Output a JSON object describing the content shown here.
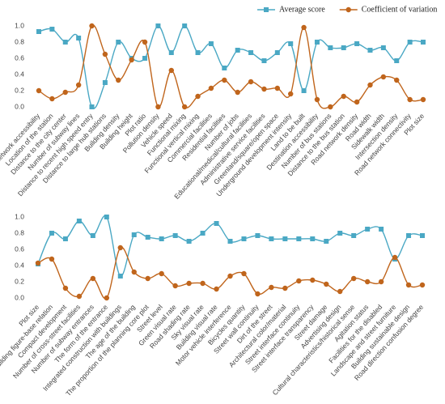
{
  "chart_data": [
    {
      "type": "line",
      "legend": "top-right",
      "categories": [
        "Metro network accessibility",
        "Location of the station",
        "Distance to the city center",
        "Number of subway lines",
        "Distance to recent high speed entry",
        "Distance to large hub stations",
        "Building density",
        "Building height",
        "Plot ratio",
        "Pollution density",
        "Vehicle speed",
        "Functional mixing",
        "Functional vertical mixing",
        "Commercial facilities",
        "Residential facilities",
        "Number of jobs",
        "Educational/medical/cultural facilities",
        "Administrative service facilities",
        "Greenland/square/open space",
        "Underground development intensity",
        "Land to be built",
        "Destination accessibility",
        "Number of bus stations",
        "Distance to the bus station",
        "Road network density",
        "Road width",
        "Sidewalk width",
        "Intersection density",
        "Road network connectivity",
        "Plot size"
      ],
      "series": [
        {
          "name": "Average score",
          "color": "#4aa8c4",
          "marker": "square",
          "values": [
            0.93,
            0.96,
            0.8,
            0.85,
            0.0,
            0.3,
            0.8,
            0.6,
            0.6,
            1.0,
            0.67,
            1.0,
            0.67,
            0.78,
            0.48,
            0.7,
            0.67,
            0.57,
            0.67,
            0.78,
            0.2,
            0.8,
            0.73,
            0.73,
            0.78,
            0.7,
            0.73,
            0.57,
            0.8,
            0.8
          ]
        },
        {
          "name": "Coefficient of variation",
          "color": "#c0651c",
          "marker": "circle",
          "values": [
            0.2,
            0.1,
            0.18,
            0.27,
            1.0,
            0.65,
            0.33,
            0.58,
            0.8,
            0.0,
            0.45,
            0.0,
            0.13,
            0.23,
            0.33,
            0.18,
            0.31,
            0.22,
            0.23,
            0.16,
            0.98,
            0.09,
            0.0,
            0.13,
            0.06,
            0.27,
            0.37,
            0.33,
            0.09,
            0.09
          ]
        }
      ],
      "ylim": [
        0,
        1
      ],
      "yticks": [
        {
          "value": 0,
          "label": "0.0"
        },
        0.2,
        0.4,
        0.6,
        0.8,
        {
          "value": 1,
          "label": "1.0"
        }
      ]
    },
    {
      "type": "line",
      "categories": [
        "Plot size",
        "Building figure-base relation",
        "Compact development",
        "Number of cross-street facilities",
        "Number of subway entrances",
        "The form of the entrance",
        "Integrated construction with buildings",
        "The age of the building",
        "The proportion of the planning core plot",
        "Street level",
        "Green visual rate",
        "Road shading rate",
        "Sky visual rate",
        "Building visual rate",
        "Motor vehicle interference",
        "Bicycles quantity",
        "Street wall continuity",
        "Dirt of the street",
        "Architectural color/material",
        "Street interface continuity",
        "Street interface transparency",
        "Street damage",
        "Advertising design",
        "Cultural characteristics/historical sense",
        "Agitation status",
        "Facilities for the disabled",
        "Landscape and street furniture",
        "Building sustainable design",
        "Road direction confusion degree"
      ],
      "series": [
        {
          "color": "#4aa8c4",
          "marker": "square",
          "values": [
            0.42,
            0.8,
            0.73,
            0.95,
            0.77,
            1.0,
            0.27,
            0.78,
            0.75,
            0.73,
            0.77,
            0.7,
            0.8,
            0.92,
            0.7,
            0.73,
            0.77,
            0.73,
            0.73,
            0.73,
            0.73,
            0.7,
            0.8,
            0.77,
            0.85,
            0.85,
            0.48,
            0.77,
            0.77
          ]
        },
        {
          "color": "#c0651c",
          "marker": "circle",
          "values": [
            0.43,
            0.48,
            0.12,
            0.02,
            0.24,
            0.0,
            0.62,
            0.32,
            0.24,
            0.3,
            0.15,
            0.18,
            0.18,
            0.11,
            0.27,
            0.3,
            0.05,
            0.13,
            0.12,
            0.21,
            0.22,
            0.17,
            0.08,
            0.24,
            0.2,
            0.2,
            0.5,
            0.16,
            0.16
          ]
        }
      ],
      "ylim": [
        0,
        1
      ],
      "yticks": [
        {
          "value": 0,
          "label": "0.0"
        },
        0.2,
        0.4,
        0.6,
        0.8,
        {
          "value": 1,
          "label": "1.0"
        }
      ]
    }
  ]
}
